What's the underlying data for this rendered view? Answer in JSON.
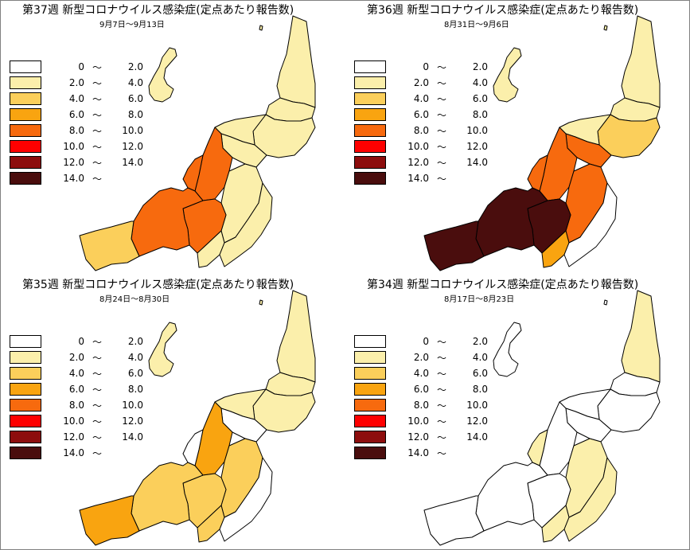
{
  "legend": [
    {
      "lo": "0",
      "tilde": "～",
      "hi": "2.0",
      "color": "#ffffff"
    },
    {
      "lo": "2.0",
      "tilde": "～",
      "hi": "4.0",
      "color": "#fbefab"
    },
    {
      "lo": "4.0",
      "tilde": "～",
      "hi": "6.0",
      "color": "#fbcf5b"
    },
    {
      "lo": "6.0",
      "tilde": "～",
      "hi": "8.0",
      "color": "#f9a410"
    },
    {
      "lo": "8.0",
      "tilde": "～",
      "hi": "10.0",
      "color": "#f76a0e"
    },
    {
      "lo": "10.0",
      "tilde": "～",
      "hi": "12.0",
      "color": "#fe0000"
    },
    {
      "lo": "12.0",
      "tilde": "～",
      "hi": "14.0",
      "color": "#8d0d0d"
    },
    {
      "lo": "14.0",
      "tilde": "～",
      "hi": "",
      "color": "#4a0d0d"
    }
  ],
  "panels": [
    {
      "title": "第37週 新型コロナウイルス感染症(定点あたり報告数)",
      "subtitle": "9月7日～9月13日",
      "colors": {
        "sado": "#fbefab",
        "k1": "#fbefab",
        "k2": "#fbefab",
        "k3": "#fbefab",
        "k4": "#fbefab",
        "k5": "#fbefab",
        "k6": "#f76a0e",
        "k7": "#f76a0e",
        "k8": "#fbefab",
        "k9": "#f76a0e",
        "k10": "#f76a0e",
        "k11": "#fbcf5b",
        "k12": "#fbefab",
        "k13": "#fbefab"
      }
    },
    {
      "title": "第36週 新型コロナウイルス感染症(定点あたり報告数)",
      "subtitle": "8月31日～9月6日",
      "colors": {
        "sado": "#fbefab",
        "k1": "#fbefab",
        "k2": "#fbefab",
        "k3": "#fbcf5b",
        "k4": "#fbefab",
        "k5": "#f76a0e",
        "k6": "#f76a0e",
        "k7": "#f76a0e",
        "k8": "#f76a0e",
        "k9": "#4a0d0d",
        "k10": "#4a0d0d",
        "k11": "#4a0d0d",
        "k12": "#f9a410",
        "k13": "#ffffff"
      }
    },
    {
      "title": "第35週 新型コロナウイルス感染症(定点あたり報告数)",
      "subtitle": "8月24日～8月30日",
      "colors": {
        "sado": "#fbefab",
        "k1": "#fbefab",
        "k2": "#fbefab",
        "k3": "#fbefab",
        "k4": "#fbefab",
        "k5": "#ffffff",
        "k6": "#f9a410",
        "k7": "#ffffff",
        "k8": "#fbcf5b",
        "k9": "#fbcf5b",
        "k10": "#fbcf5b",
        "k11": "#f9a410",
        "k12": "#fbcf5b",
        "k13": "#ffffff"
      }
    },
    {
      "title": "第34週 新型コロナウイルス感染症(定点あたり報告数)",
      "subtitle": "8月17日～8月23日",
      "colors": {
        "sado": "#ffffff",
        "k1": "#fbefab",
        "k2": "#ffffff",
        "k3": "#ffffff",
        "k4": "#ffffff",
        "k5": "#ffffff",
        "k6": "#ffffff",
        "k7": "#fbefab",
        "k8": "#fbefab",
        "k9": "#ffffff",
        "k10": "#ffffff",
        "k11": "#ffffff",
        "k12": "#fbefab",
        "k13": "#fbefab"
      }
    }
  ]
}
